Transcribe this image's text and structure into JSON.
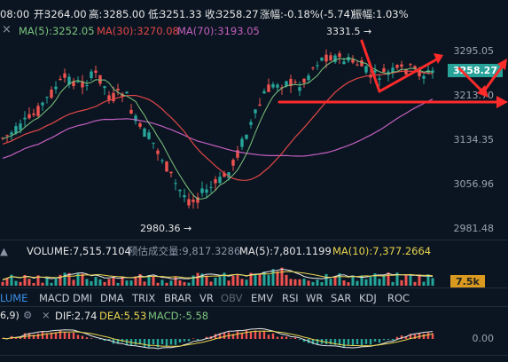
{
  "header": {
    "time_fragment": "08:00",
    "open_label": "开:",
    "open_value": "3264.00",
    "high_label": "高:",
    "high_value": "3285.00",
    "low_label": "低:",
    "low_value": "3251.33",
    "close_label": "收:",
    "close_value": "3258.27",
    "change_label": "涨幅:",
    "change_value": "-0.18%(-5.74)",
    "amplitude_label": "振幅:",
    "amplitude_value": "1.03%"
  },
  "ma_legend": {
    "close_glyph": "×",
    "ma5": "MA(5):3252.05",
    "ma30": "MA(30):3270.08",
    "ma70": "MA(70):3193.05",
    "colors": {
      "ma5": "#7cc47e",
      "ma30": "#e04747",
      "ma70": "#c35fc0"
    }
  },
  "price_axis": {
    "labels": [
      "3295.05",
      "3213.70",
      "3134.35",
      "3056.96",
      "2981.48"
    ],
    "current_price": "3258.27"
  },
  "annotations": {
    "high_marker": "3331.5 →",
    "low_marker": "2980.36 →"
  },
  "volume": {
    "volume_text": "VOLUME:7,515.7104",
    "estimate_text": "预估成交量:9,817.3286",
    "ma5_text": "MA(5):7,801.1199",
    "ma10_text": "MA(10):7,377.2664",
    "axis_tag": "7.5k",
    "colors": {
      "ma5": "#e6e6e6",
      "ma10": "#e8d44d"
    }
  },
  "indicator_tabs": [
    "LUME",
    "MACD",
    "DMI",
    "DMA",
    "TRIX",
    "BRAR",
    "VR",
    "OBV",
    "EMV",
    "RSI",
    "WR",
    "SAR",
    "KDJ",
    "ROC"
  ],
  "macd": {
    "params": "6,9)",
    "dif_text": "DIF:2.74",
    "dea_text": "DEA:5.53",
    "macd_text": "MACD:-5.58",
    "axis_label": "0.00",
    "colors": {
      "dif": "#e6e6e6",
      "dea": "#e8d44d",
      "macd": "#7cc47e"
    }
  },
  "colors": {
    "up": "#26a69a",
    "down": "#ef5350",
    "background": "#0b1521",
    "arrow": "#ff2a2a"
  }
}
